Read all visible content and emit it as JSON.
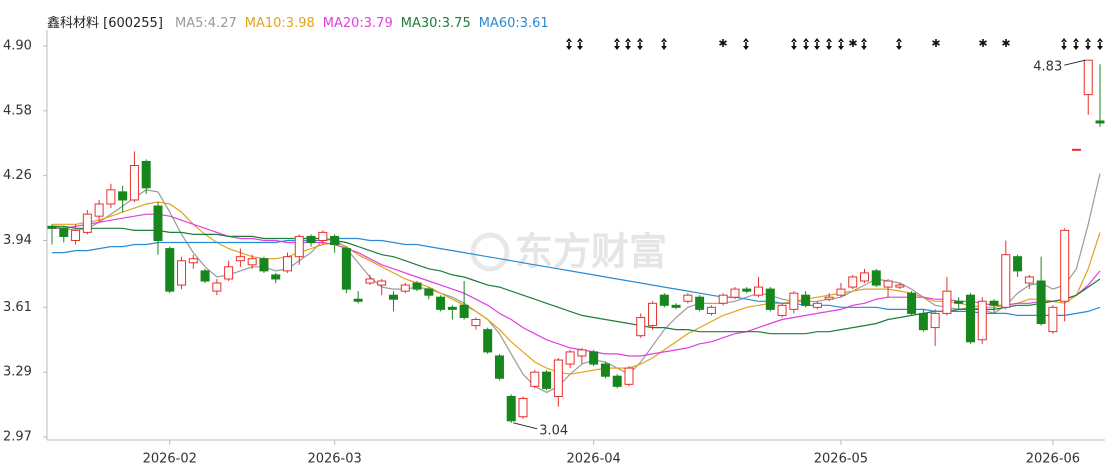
{
  "chart_data": {
    "type": "candlestick",
    "title": "鑫科材料 [600255]",
    "watermark": "东方财富",
    "categories": [
      null,
      null,
      null,
      null,
      null,
      null,
      null,
      null,
      null,
      null,
      "2026-02",
      null,
      null,
      null,
      null,
      null,
      null,
      null,
      null,
      null,
      null,
      null,
      null,
      null,
      "2026-03",
      null,
      null,
      null,
      null,
      null,
      null,
      null,
      null,
      null,
      null,
      null,
      null,
      null,
      null,
      null,
      null,
      null,
      null,
      null,
      null,
      null,
      "2026-04",
      null,
      null,
      null,
      null,
      null,
      null,
      null,
      null,
      null,
      null,
      null,
      null,
      null,
      null,
      null,
      null,
      null,
      null,
      null,
      null,
      "2026-05",
      null,
      null,
      null,
      null,
      null,
      null,
      null,
      null,
      null,
      null,
      null,
      null,
      null,
      null,
      null,
      null,
      null,
      "2026-06",
      null,
      null,
      null,
      null
    ],
    "open": [
      4.01,
      4.0,
      3.94,
      3.98,
      4.06,
      4.12,
      4.18,
      4.14,
      4.33,
      4.11,
      3.9,
      3.72,
      3.83,
      3.79,
      3.69,
      3.75,
      3.84,
      3.82,
      3.85,
      3.77,
      3.79,
      3.86,
      3.96,
      3.94,
      3.96,
      3.9,
      3.65,
      3.73,
      3.72,
      3.67,
      3.69,
      3.73,
      3.7,
      3.66,
      3.61,
      3.62,
      3.52,
      3.5,
      3.37,
      3.17,
      3.07,
      3.22,
      3.29,
      3.17,
      3.33,
      3.37,
      3.39,
      3.33,
      3.27,
      3.23,
      3.47,
      3.52,
      3.67,
      3.62,
      3.64,
      3.66,
      3.58,
      3.63,
      3.66,
      3.7,
      3.67,
      3.7,
      3.57,
      3.6,
      3.67,
      3.61,
      3.65,
      3.67,
      3.71,
      3.74,
      3.79,
      3.71,
      3.71,
      3.68,
      3.58,
      3.51,
      3.58,
      3.64,
      3.67,
      3.45,
      3.64,
      3.61,
      3.86,
      3.73,
      3.74,
      3.49,
      3.64,
      4.39,
      4.66,
      4.53
    ],
    "high": [
      4.02,
      4.01,
      4.02,
      4.09,
      4.14,
      4.22,
      4.21,
      4.38,
      4.34,
      4.13,
      3.91,
      3.86,
      3.87,
      3.8,
      3.75,
      3.84,
      3.9,
      3.87,
      3.86,
      3.78,
      3.88,
      3.97,
      3.97,
      3.99,
      3.97,
      3.91,
      3.69,
      3.77,
      3.75,
      3.69,
      3.73,
      3.74,
      3.71,
      3.67,
      3.62,
      3.74,
      3.56,
      3.51,
      3.38,
      3.18,
      3.17,
      3.3,
      3.3,
      3.36,
      3.4,
      3.41,
      3.4,
      3.34,
      3.28,
      3.32,
      3.58,
      3.64,
      3.68,
      3.63,
      3.68,
      3.67,
      3.62,
      3.68,
      3.71,
      3.71,
      3.76,
      3.71,
      3.63,
      3.69,
      3.69,
      3.64,
      3.68,
      3.73,
      3.77,
      3.8,
      3.8,
      3.75,
      3.73,
      3.69,
      3.6,
      3.6,
      3.76,
      3.66,
      3.68,
      3.66,
      3.65,
      3.94,
      3.87,
      3.77,
      3.86,
      3.62,
      4.0,
      4.39,
      4.83,
      4.81
    ],
    "low": [
      3.92,
      3.93,
      3.92,
      3.97,
      4.03,
      4.1,
      4.08,
      4.13,
      4.17,
      3.87,
      3.68,
      3.7,
      3.8,
      3.73,
      3.67,
      3.74,
      3.81,
      3.8,
      3.78,
      3.73,
      3.78,
      3.82,
      3.91,
      3.92,
      3.88,
      3.68,
      3.63,
      3.72,
      3.67,
      3.59,
      3.68,
      3.69,
      3.65,
      3.59,
      3.55,
      3.55,
      3.5,
      3.38,
      3.25,
      3.04,
      3.06,
      3.21,
      3.2,
      3.12,
      3.31,
      3.33,
      3.32,
      3.26,
      3.21,
      3.22,
      3.46,
      3.5,
      3.61,
      3.6,
      3.63,
      3.59,
      3.57,
      3.62,
      3.65,
      3.68,
      3.66,
      3.59,
      3.56,
      3.58,
      3.61,
      3.6,
      3.64,
      3.66,
      3.7,
      3.73,
      3.71,
      3.66,
      3.7,
      3.57,
      3.49,
      3.42,
      3.57,
      3.6,
      3.43,
      3.43,
      3.58,
      3.6,
      3.76,
      3.7,
      3.52,
      3.48,
      3.54,
      4.39,
      4.56,
      4.5
    ],
    "close": [
      4.0,
      3.96,
      3.99,
      4.07,
      4.12,
      4.19,
      4.14,
      4.31,
      4.2,
      3.94,
      3.69,
      3.84,
      3.85,
      3.74,
      3.73,
      3.81,
      3.86,
      3.85,
      3.79,
      3.75,
      3.86,
      3.96,
      3.93,
      3.98,
      3.92,
      3.7,
      3.64,
      3.75,
      3.74,
      3.65,
      3.72,
      3.7,
      3.67,
      3.6,
      3.6,
      3.56,
      3.55,
      3.39,
      3.26,
      3.05,
      3.16,
      3.29,
      3.21,
      3.35,
      3.39,
      3.4,
      3.33,
      3.27,
      3.22,
      3.31,
      3.56,
      3.63,
      3.62,
      3.61,
      3.67,
      3.6,
      3.61,
      3.67,
      3.7,
      3.69,
      3.71,
      3.6,
      3.62,
      3.68,
      3.62,
      3.63,
      3.66,
      3.7,
      3.76,
      3.78,
      3.72,
      3.74,
      3.72,
      3.58,
      3.5,
      3.58,
      3.69,
      3.63,
      3.44,
      3.64,
      3.62,
      3.87,
      3.79,
      3.76,
      3.53,
      3.61,
      3.99,
      4.39,
      4.83,
      4.52
    ],
    "up_color": "#e8302c",
    "down_color": "#17861c",
    "series": [
      {
        "name": "MA5:4.27",
        "color": "#9a9a9a",
        "values": [
          4.01,
          4.0,
          3.99,
          4.0,
          4.03,
          4.07,
          4.11,
          4.15,
          4.19,
          4.18,
          4.08,
          3.97,
          3.88,
          3.81,
          3.76,
          3.77,
          3.79,
          3.81,
          3.81,
          3.79,
          3.8,
          3.84,
          3.88,
          3.94,
          3.95,
          3.9,
          3.83,
          3.76,
          3.71,
          3.7,
          3.7,
          3.71,
          3.7,
          3.68,
          3.66,
          3.63,
          3.59,
          3.55,
          3.48,
          3.38,
          3.28,
          3.22,
          3.19,
          3.22,
          3.28,
          3.33,
          3.35,
          3.34,
          3.31,
          3.28,
          3.34,
          3.42,
          3.5,
          3.56,
          3.61,
          3.63,
          3.63,
          3.63,
          3.64,
          3.66,
          3.68,
          3.67,
          3.65,
          3.64,
          3.64,
          3.64,
          3.65,
          3.66,
          3.69,
          3.72,
          3.75,
          3.74,
          3.73,
          3.7,
          3.66,
          3.62,
          3.61,
          3.6,
          3.61,
          3.6,
          3.58,
          3.62,
          3.68,
          3.72,
          3.73,
          3.7,
          3.72,
          3.8,
          4.02,
          4.27
        ]
      },
      {
        "name": "MA10:3.98",
        "color": "#e3a21a",
        "values": [
          4.02,
          4.02,
          4.02,
          4.03,
          4.04,
          4.06,
          4.08,
          4.1,
          4.12,
          4.13,
          4.12,
          4.08,
          4.02,
          3.97,
          3.93,
          3.9,
          3.88,
          3.86,
          3.85,
          3.85,
          3.86,
          3.88,
          3.9,
          3.92,
          3.93,
          3.91,
          3.87,
          3.84,
          3.81,
          3.78,
          3.75,
          3.73,
          3.71,
          3.68,
          3.65,
          3.62,
          3.59,
          3.55,
          3.5,
          3.44,
          3.39,
          3.34,
          3.31,
          3.29,
          3.28,
          3.29,
          3.3,
          3.31,
          3.31,
          3.31,
          3.33,
          3.36,
          3.4,
          3.44,
          3.48,
          3.51,
          3.54,
          3.57,
          3.59,
          3.61,
          3.62,
          3.63,
          3.63,
          3.64,
          3.65,
          3.66,
          3.67,
          3.68,
          3.69,
          3.7,
          3.7,
          3.7,
          3.69,
          3.68,
          3.66,
          3.64,
          3.64,
          3.63,
          3.62,
          3.61,
          3.61,
          3.62,
          3.63,
          3.65,
          3.65,
          3.64,
          3.63,
          3.67,
          3.8,
          3.98
        ]
      },
      {
        "name": "MA20:3.79",
        "color": "#e23ee0",
        "values": [
          4.0,
          4.0,
          4.01,
          4.02,
          4.03,
          4.04,
          4.05,
          4.06,
          4.07,
          4.07,
          4.06,
          4.04,
          4.02,
          4.0,
          3.98,
          3.96,
          3.95,
          3.95,
          3.94,
          3.94,
          3.93,
          3.93,
          3.93,
          3.93,
          3.92,
          3.9,
          3.88,
          3.85,
          3.82,
          3.8,
          3.78,
          3.76,
          3.74,
          3.72,
          3.7,
          3.68,
          3.65,
          3.62,
          3.58,
          3.55,
          3.51,
          3.48,
          3.45,
          3.43,
          3.41,
          3.4,
          3.39,
          3.38,
          3.38,
          3.37,
          3.37,
          3.38,
          3.39,
          3.4,
          3.41,
          3.43,
          3.44,
          3.46,
          3.48,
          3.49,
          3.51,
          3.53,
          3.55,
          3.56,
          3.57,
          3.58,
          3.59,
          3.6,
          3.62,
          3.63,
          3.65,
          3.66,
          3.66,
          3.66,
          3.66,
          3.65,
          3.65,
          3.64,
          3.64,
          3.63,
          3.62,
          3.62,
          3.63,
          3.63,
          3.64,
          3.64,
          3.65,
          3.67,
          3.72,
          3.79
        ]
      },
      {
        "name": "MA30:3.75",
        "color": "#1c7d3c",
        "values": [
          4.01,
          4.01,
          4.0,
          4.0,
          4.0,
          4.0,
          4.0,
          3.99,
          3.99,
          3.99,
          3.98,
          3.98,
          3.97,
          3.97,
          3.97,
          3.96,
          3.96,
          3.96,
          3.95,
          3.95,
          3.95,
          3.95,
          3.95,
          3.95,
          3.94,
          3.93,
          3.91,
          3.89,
          3.87,
          3.86,
          3.84,
          3.82,
          3.8,
          3.79,
          3.77,
          3.76,
          3.74,
          3.72,
          3.71,
          3.69,
          3.67,
          3.65,
          3.63,
          3.61,
          3.59,
          3.57,
          3.56,
          3.55,
          3.54,
          3.53,
          3.52,
          3.51,
          3.51,
          3.5,
          3.5,
          3.49,
          3.49,
          3.49,
          3.49,
          3.49,
          3.49,
          3.48,
          3.48,
          3.48,
          3.48,
          3.49,
          3.49,
          3.5,
          3.51,
          3.52,
          3.53,
          3.55,
          3.56,
          3.57,
          3.58,
          3.59,
          3.59,
          3.6,
          3.6,
          3.6,
          3.6,
          3.61,
          3.62,
          3.62,
          3.63,
          3.64,
          3.65,
          3.67,
          3.71,
          3.75
        ]
      },
      {
        "name": "MA60:3.61",
        "color": "#2a8bd2",
        "values": [
          3.88,
          3.88,
          3.89,
          3.89,
          3.9,
          3.91,
          3.91,
          3.92,
          3.92,
          3.93,
          3.93,
          3.93,
          3.93,
          3.93,
          3.93,
          3.93,
          3.93,
          3.93,
          3.93,
          3.93,
          3.94,
          3.94,
          3.94,
          3.94,
          3.95,
          3.95,
          3.95,
          3.94,
          3.94,
          3.93,
          3.92,
          3.92,
          3.91,
          3.9,
          3.89,
          3.88,
          3.87,
          3.86,
          3.85,
          3.84,
          3.83,
          3.82,
          3.81,
          3.8,
          3.79,
          3.78,
          3.77,
          3.76,
          3.75,
          3.74,
          3.73,
          3.72,
          3.71,
          3.7,
          3.69,
          3.68,
          3.67,
          3.66,
          3.66,
          3.65,
          3.64,
          3.64,
          3.63,
          3.63,
          3.62,
          3.62,
          3.62,
          3.61,
          3.61,
          3.61,
          3.61,
          3.6,
          3.6,
          3.6,
          3.6,
          3.59,
          3.59,
          3.59,
          3.59,
          3.58,
          3.58,
          3.58,
          3.57,
          3.57,
          3.57,
          3.57,
          3.57,
          3.58,
          3.59,
          3.61
        ]
      }
    ],
    "annotations": [
      "4.83",
      "3.04"
    ],
    "ylim": [
      2.97,
      4.9
    ],
    "yticks": [
      {
        "value": 4.9,
        "label": "4.90"
      },
      4.58,
      4.26,
      3.94,
      3.61,
      3.29,
      2.97
    ],
    "grid": false
  }
}
